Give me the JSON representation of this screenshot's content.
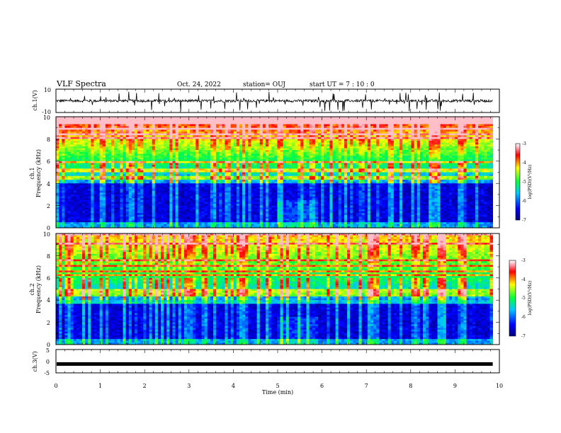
{
  "header": {
    "title": "VLF Spectra",
    "date": "Oct. 24, 2022",
    "station": "station= OUJ",
    "start": "start  UT =   7 : 10 : 0"
  },
  "chart_data": [
    {
      "type": "line",
      "ylabel": "ch.1(V)",
      "ylim": [
        -10,
        10
      ],
      "yticks": [
        "10",
        "-10"
      ],
      "xlim": [
        0,
        10
      ],
      "description_values": {
        "baseline": 0,
        "spike_max": 8,
        "spike_min": -9
      }
    },
    {
      "type": "heatmap",
      "ylabel_line1": "ch.1",
      "ylabel_line2": "Frequency (kHz)",
      "ylim": [
        0,
        10
      ],
      "yticks": [
        "0",
        "2",
        "4",
        "6",
        "8",
        "10"
      ],
      "xlim": [
        0,
        10
      ],
      "colorbar": {
        "range": [
          -7,
          -3
        ],
        "ticks": [
          "-3",
          "-4",
          "-5",
          "-6",
          "-7"
        ],
        "label": "log(PSD)(V²/Hz)"
      }
    },
    {
      "type": "heatmap",
      "ylabel_line1": "ch.2",
      "ylabel_line2": "Frequency (kHz)",
      "ylim": [
        0,
        10
      ],
      "yticks": [
        "0",
        "2",
        "4",
        "6",
        "8",
        "10"
      ],
      "xlim": [
        0,
        10
      ],
      "colorbar": {
        "range": [
          -7,
          -3
        ],
        "ticks": [
          "-3",
          "-4",
          "-5",
          "-6",
          "-7"
        ],
        "label": "log(PSD)(V²/Hz)"
      }
    },
    {
      "type": "line",
      "ylabel": "ch.3(V)",
      "ylim": [
        -5,
        5
      ],
      "yticks": [
        "5",
        "0",
        "-5"
      ],
      "xlim": [
        0,
        10
      ],
      "xlabel": "Time (min)",
      "xticks": [
        "0",
        "1",
        "2",
        "3",
        "4",
        "5",
        "6",
        "7",
        "8",
        "9",
        "10"
      ],
      "values": {
        "constant": -1.2
      }
    }
  ]
}
